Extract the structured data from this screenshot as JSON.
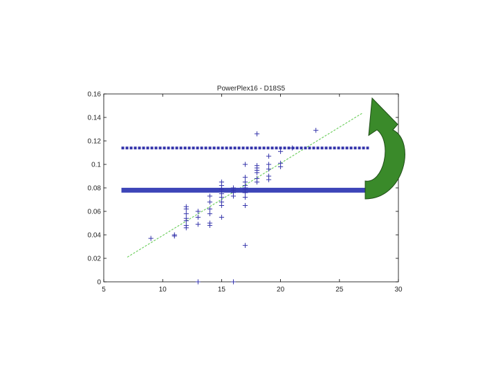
{
  "chart_data": {
    "type": "scatter",
    "title": "PowerPlex16 - D18S5",
    "xlabel": "",
    "ylabel": "",
    "xlim": [
      5,
      30
    ],
    "ylim": [
      0,
      0.16
    ],
    "x_ticks": [
      "5",
      "10",
      "15",
      "20",
      "25",
      "30"
    ],
    "y_ticks": [
      "0",
      "0.02",
      "0.04",
      "0.06",
      "0.08",
      "0.1",
      "0.12",
      "0.14",
      "0.16"
    ],
    "grid": false,
    "legend": "none",
    "series": [
      {
        "type": "scatter",
        "marker": "+",
        "color": "#3333aa",
        "points": [
          [
            9,
            0.037
          ],
          [
            11,
            0.04
          ],
          [
            11,
            0.039
          ],
          [
            12,
            0.064
          ],
          [
            12,
            0.062
          ],
          [
            12,
            0.058
          ],
          [
            12,
            0.054
          ],
          [
            12,
            0.052
          ],
          [
            12,
            0.048
          ],
          [
            12,
            0.046
          ],
          [
            13,
            0.06
          ],
          [
            13,
            0.055
          ],
          [
            13,
            0.049
          ],
          [
            13,
            0.0
          ],
          [
            14,
            0.073
          ],
          [
            14,
            0.068
          ],
          [
            14,
            0.062
          ],
          [
            14,
            0.058
          ],
          [
            14,
            0.05
          ],
          [
            14,
            0.048
          ],
          [
            15,
            0.085
          ],
          [
            15,
            0.082
          ],
          [
            15,
            0.079
          ],
          [
            15,
            0.075
          ],
          [
            15,
            0.072
          ],
          [
            15,
            0.068
          ],
          [
            15,
            0.065
          ],
          [
            15,
            0.055
          ],
          [
            16,
            0.08
          ],
          [
            16,
            0.078
          ],
          [
            16,
            0.076
          ],
          [
            16,
            0.073
          ],
          [
            16,
            0.0
          ],
          [
            17,
            0.1
          ],
          [
            17,
            0.089
          ],
          [
            17,
            0.085
          ],
          [
            17,
            0.082
          ],
          [
            17,
            0.079
          ],
          [
            17,
            0.076
          ],
          [
            17,
            0.072
          ],
          [
            17,
            0.065
          ],
          [
            17,
            0.031
          ],
          [
            18,
            0.126
          ],
          [
            18,
            0.099
          ],
          [
            18,
            0.097
          ],
          [
            18,
            0.095
          ],
          [
            18,
            0.093
          ],
          [
            18,
            0.088
          ],
          [
            18,
            0.085
          ],
          [
            19,
            0.107
          ],
          [
            19,
            0.1
          ],
          [
            19,
            0.096
          ],
          [
            19,
            0.09
          ],
          [
            19,
            0.087
          ],
          [
            20,
            0.111
          ],
          [
            20,
            0.101
          ],
          [
            20,
            0.098
          ],
          [
            21,
            0.114
          ],
          [
            23,
            0.129
          ]
        ]
      }
    ],
    "fit_line": {
      "color": "#66cc55",
      "style": "dashed",
      "from": [
        7,
        0.021
      ],
      "to": [
        27,
        0.144
      ]
    },
    "reference_lines": [
      {
        "name": "",
        "y": 0.114,
        "x_from": 6.5,
        "x_to": 27.5,
        "style": "dotted",
        "color": "#3333aa"
      },
      {
        "name": "",
        "y": 0.078,
        "x_from": 6.5,
        "x_to": 27.5,
        "style": "solid",
        "color": "#3d45b8"
      }
    ],
    "annotation_arrow": {
      "color": "#3a8a2a",
      "shape": "curved-arrow",
      "points_to": "upper-right of fit line"
    }
  }
}
